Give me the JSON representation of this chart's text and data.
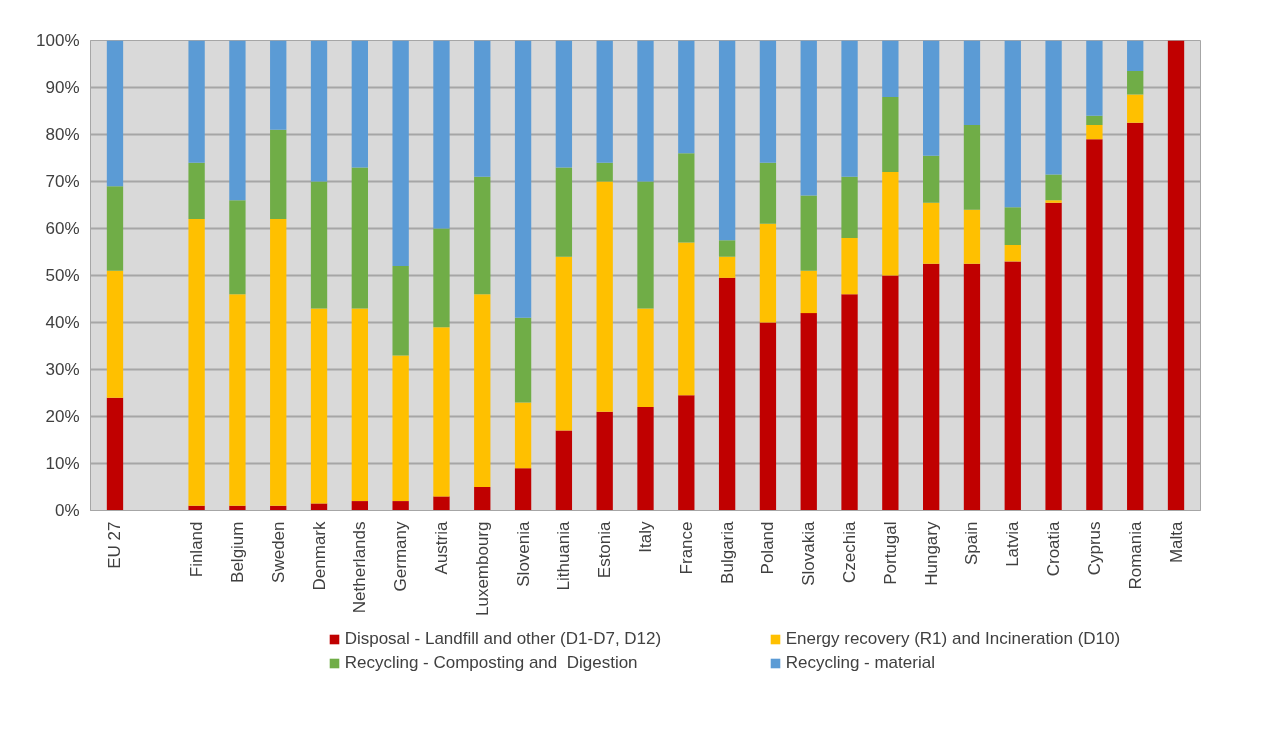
{
  "chart_data": {
    "type": "bar",
    "stacked": true,
    "categories": [
      "EU 27",
      null,
      "Finland",
      "Belgium",
      "Sweden",
      "Denmark",
      "Netherlands",
      "Germany",
      "Austria",
      "Luxembourg",
      "Slovenia",
      "Lithuania",
      "Estonia",
      "Italy",
      "France",
      "Bulgaria",
      "Poland",
      "Slovakia",
      "Czechia",
      "Portugal",
      "Hungary",
      "Spain",
      "Latvia",
      "Croatia",
      "Cyprus",
      "Romania",
      "Malta"
    ],
    "series": [
      {
        "name": "Disposal - Landfill and other (D1-D7, D12)",
        "color": "#c00000",
        "values": [
          24,
          null,
          1,
          1,
          1,
          1.5,
          2,
          2,
          3,
          5,
          9,
          17,
          21,
          22,
          24.5,
          49.5,
          40,
          42,
          46,
          50,
          52.5,
          52.5,
          53,
          65.5,
          79,
          82.5,
          100
        ]
      },
      {
        "name": "Energy recovery (R1) and Incineration (D10)",
        "color": "#ffc000",
        "values": [
          27,
          null,
          61,
          45,
          61,
          41.5,
          41,
          31,
          36,
          41,
          14,
          37,
          49,
          21,
          32.5,
          4.5,
          21,
          9,
          12,
          22,
          13,
          11.5,
          3.5,
          0.5,
          3,
          6,
          0
        ]
      },
      {
        "name": "Recycling - Composting and  Digestion",
        "color": "#70ad47",
        "values": [
          18,
          null,
          12,
          20,
          19,
          27,
          30,
          19,
          21,
          25,
          18,
          19,
          4,
          27,
          19,
          3.5,
          13,
          16,
          13,
          16,
          10,
          18,
          8,
          5.5,
          2,
          5,
          0
        ]
      },
      {
        "name": "Recycling - material",
        "color": "#5b9bd5",
        "values": [
          31,
          null,
          26,
          34,
          19,
          30,
          27,
          48,
          40,
          29,
          59,
          27,
          26,
          30,
          24,
          42.5,
          26,
          33,
          29,
          12,
          24.5,
          18,
          35.5,
          28.5,
          16,
          6.5,
          0
        ]
      }
    ],
    "ylim": [
      0,
      100
    ],
    "yticks": [
      {
        "value": 0,
        "label": "0%"
      },
      {
        "value": 10,
        "label": "10%"
      },
      {
        "value": 20,
        "label": "20%"
      },
      {
        "value": 30,
        "label": "30%"
      },
      {
        "value": 40,
        "label": "40%"
      },
      {
        "value": 50,
        "label": "50%"
      },
      {
        "value": 60,
        "label": "60%"
      },
      {
        "value": 70,
        "label": "70%"
      },
      {
        "value": 80,
        "label": "80%"
      },
      {
        "value": 90,
        "label": "90%"
      },
      {
        "value": 100,
        "label": "100%"
      }
    ],
    "grid": "y",
    "legend": "bottom"
  }
}
